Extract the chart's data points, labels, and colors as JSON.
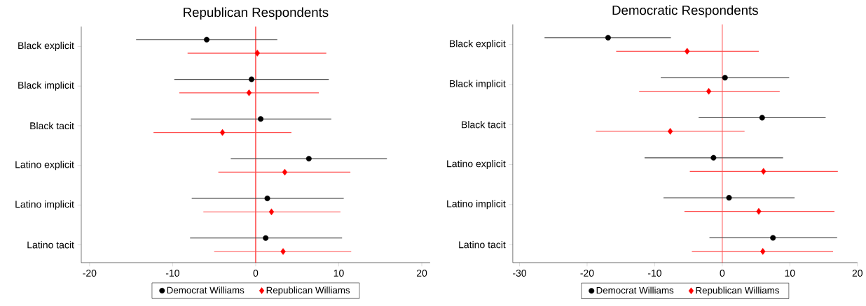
{
  "chart_data": [
    {
      "type": "scatter",
      "orientation": "horizontal",
      "title": "Republican Respondents",
      "categories": [
        "Black explicit",
        "Black implicit",
        "Black tacit",
        "Latino explicit",
        "Latino implicit",
        "Latino tacit"
      ],
      "series": [
        {
          "name": "Democrat Williams",
          "color": "#000000",
          "marker": "circle",
          "values": [
            -5.9,
            -0.5,
            0.6,
            6.4,
            1.4,
            1.2
          ],
          "errors": [
            [
              -14.4,
              2.6
            ],
            [
              -9.8,
              8.8
            ],
            [
              -7.8,
              9.1
            ],
            [
              -3.0,
              15.8
            ],
            [
              -7.7,
              10.6
            ],
            [
              -7.9,
              10.4
            ]
          ]
        },
        {
          "name": "Republican Williams",
          "color": "#ff0000",
          "marker": "diamond",
          "values": [
            0.2,
            -0.8,
            -4.0,
            3.5,
            1.9,
            3.3
          ],
          "errors": [
            [
              -8.2,
              8.5
            ],
            [
              -9.2,
              7.6
            ],
            [
              -12.3,
              4.3
            ],
            [
              -4.5,
              11.4
            ],
            [
              -6.3,
              10.2
            ],
            [
              -5.0,
              11.5
            ]
          ]
        }
      ],
      "xlim": [
        -21,
        21
      ],
      "xticks": [
        -20,
        -10,
        0,
        10,
        20
      ],
      "ref_lines": [
        {
          "axis": "x",
          "value": 0,
          "color": "#ff0000"
        }
      ],
      "legend": "bottom"
    },
    {
      "type": "scatter",
      "orientation": "horizontal",
      "title": "Democratic Respondents",
      "categories": [
        "Black explicit",
        "Black implicit",
        "Black tacit",
        "Latino explicit",
        "Latino implicit",
        "Latino tacit"
      ],
      "series": [
        {
          "name": "Democrat Williams",
          "color": "#000000",
          "marker": "circle",
          "values": [
            -16.9,
            0.4,
            5.9,
            -1.3,
            1.0,
            7.5
          ],
          "errors": [
            [
              -26.3,
              -7.6
            ],
            [
              -9.1,
              9.9
            ],
            [
              -3.5,
              15.3
            ],
            [
              -11.5,
              9.0
            ],
            [
              -8.7,
              10.7
            ],
            [
              -1.9,
              17.0
            ]
          ]
        },
        {
          "name": "Republican Williams",
          "color": "#ff0000",
          "marker": "diamond",
          "values": [
            -5.2,
            -2.0,
            -7.7,
            6.1,
            5.4,
            6.0
          ],
          "errors": [
            [
              -15.7,
              5.4
            ],
            [
              -12.3,
              8.5
            ],
            [
              -18.7,
              3.3
            ],
            [
              -4.8,
              17.1
            ],
            [
              -5.6,
              16.6
            ],
            [
              -4.5,
              16.4
            ]
          ]
        }
      ],
      "xlim": [
        -31,
        20
      ],
      "xticks": [
        -30,
        -20,
        -10,
        0,
        10,
        20
      ],
      "ref_lines": [
        {
          "axis": "x",
          "value": 0,
          "color": "#ff0000"
        }
      ],
      "legend": "bottom"
    }
  ]
}
